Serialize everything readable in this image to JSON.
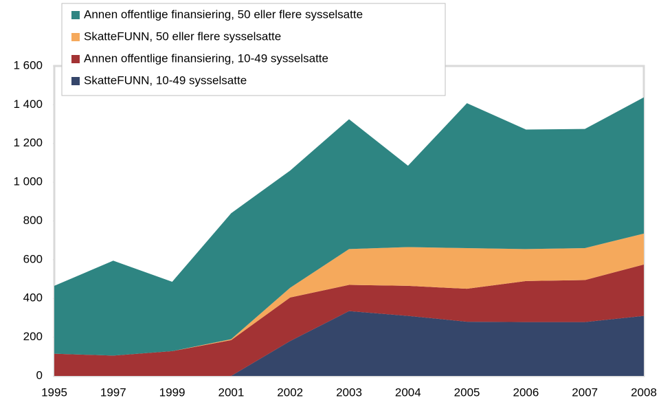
{
  "chart_data": {
    "type": "stacked_area",
    "categories": [
      "1995",
      "1997",
      "1999",
      "2001",
      "2002",
      "2003",
      "2004",
      "2005",
      "2006",
      "2007",
      "2008"
    ],
    "series": [
      {
        "name": "SkatteFUNN, 10-49 sysselsatte",
        "color": "#35466a",
        "values": [
          0,
          0,
          0,
          0,
          180,
          335,
          310,
          280,
          278,
          278,
          310
        ]
      },
      {
        "name": "Annen offentlige finansiering, 10-49 sysselsatte",
        "color": "#a33334",
        "values": [
          115,
          105,
          128,
          185,
          225,
          135,
          155,
          170,
          212,
          217,
          265
        ]
      },
      {
        "name": "SkatteFUNN, 50 eller flere sysselsatte",
        "color": "#f5a95c",
        "values": [
          0,
          0,
          0,
          5,
          50,
          185,
          200,
          210,
          165,
          165,
          160
        ]
      },
      {
        "name": "Annen offentlige finansiering, 50 eller flere sysselsatte",
        "color": "#2e8582",
        "values": [
          350,
          490,
          358,
          650,
          605,
          670,
          420,
          748,
          617,
          615,
          703
        ]
      }
    ],
    "ylim": [
      0,
      1600
    ],
    "yticks": [
      0,
      200,
      400,
      600,
      800,
      {
        "value": 1000,
        "label": "1 000"
      },
      {
        "value": 1200,
        "label": "1 200"
      },
      {
        "value": 1400,
        "label": "1 400"
      },
      {
        "value": 1600,
        "label": "1 600"
      }
    ],
    "legend": "top-left"
  }
}
